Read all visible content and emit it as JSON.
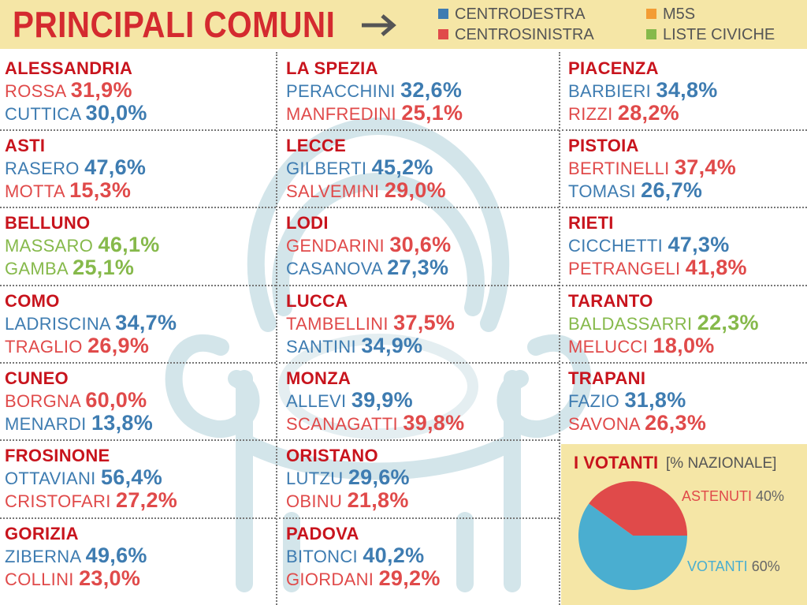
{
  "header": {
    "title": "PRINCIPALI COMUNI",
    "legend": [
      {
        "label": "CENTRODESTRA",
        "color": "#3e7cb1"
      },
      {
        "label": "CENTROSINISTRA",
        "color": "#e04a4a"
      },
      {
        "label": "M5S",
        "color": "#f39c34"
      },
      {
        "label": "LISTE CIVICHE",
        "color": "#86b94b"
      }
    ]
  },
  "cities": [
    {
      "name": "ALESSANDRIA",
      "candidates": [
        {
          "name": "ROSSA",
          "pct": "31,9%",
          "color": "#e04a4a"
        },
        {
          "name": "CUTTICA",
          "pct": "30,0%",
          "color": "#3e7cb1"
        }
      ]
    },
    {
      "name": "ASTI",
      "candidates": [
        {
          "name": "RASERO",
          "pct": "47,6%",
          "color": "#3e7cb1"
        },
        {
          "name": "MOTTA",
          "pct": "15,3%",
          "color": "#e04a4a"
        }
      ]
    },
    {
      "name": "BELLUNO",
      "candidates": [
        {
          "name": "MASSARO",
          "pct": "46,1%",
          "color": "#86b94b"
        },
        {
          "name": "GAMBA",
          "pct": "25,1%",
          "color": "#86b94b"
        }
      ]
    },
    {
      "name": "COMO",
      "candidates": [
        {
          "name": "LADRISCINA",
          "pct": "34,7%",
          "color": "#3e7cb1"
        },
        {
          "name": "TRAGLIO",
          "pct": "26,9%",
          "color": "#e04a4a"
        }
      ]
    },
    {
      "name": "CUNEO",
      "candidates": [
        {
          "name": "BORGNA",
          "pct": "60,0%",
          "color": "#e04a4a"
        },
        {
          "name": "MENARDI",
          "pct": "13,8%",
          "color": "#3e7cb1"
        }
      ]
    },
    {
      "name": "FROSINONE",
      "candidates": [
        {
          "name": "OTTAVIANI",
          "pct": "56,4%",
          "color": "#3e7cb1"
        },
        {
          "name": "CRISTOFARI",
          "pct": "27,2%",
          "color": "#e04a4a"
        }
      ]
    },
    {
      "name": "GORIZIA",
      "candidates": [
        {
          "name": "ZIBERNA",
          "pct": "49,6%",
          "color": "#3e7cb1"
        },
        {
          "name": "COLLINI",
          "pct": "23,0%",
          "color": "#e04a4a"
        }
      ]
    },
    {
      "name": "LA SPEZIA",
      "candidates": [
        {
          "name": "PERACCHINI",
          "pct": "32,6%",
          "color": "#3e7cb1"
        },
        {
          "name": "MANFREDINI",
          "pct": "25,1%",
          "color": "#e04a4a"
        }
      ]
    },
    {
      "name": "LECCE",
      "candidates": [
        {
          "name": "GILBERTI",
          "pct": "45,2%",
          "color": "#3e7cb1"
        },
        {
          "name": "SALVEMINI",
          "pct": "29,0%",
          "color": "#e04a4a"
        }
      ]
    },
    {
      "name": "LODI",
      "candidates": [
        {
          "name": "GENDARINI",
          "pct": "30,6%",
          "color": "#e04a4a"
        },
        {
          "name": "CASANOVA",
          "pct": "27,3%",
          "color": "#3e7cb1"
        }
      ]
    },
    {
      "name": "LUCCA",
      "candidates": [
        {
          "name": "TAMBELLINI",
          "pct": "37,5%",
          "color": "#e04a4a"
        },
        {
          "name": "SANTINI",
          "pct": "34,9%",
          "color": "#3e7cb1"
        }
      ]
    },
    {
      "name": "MONZA",
      "candidates": [
        {
          "name": "ALLEVI",
          "pct": "39,9%",
          "color": "#3e7cb1"
        },
        {
          "name": "SCANAGATTI",
          "pct": "39,8%",
          "color": "#e04a4a"
        }
      ]
    },
    {
      "name": "ORISTANO",
      "candidates": [
        {
          "name": "LUTZU",
          "pct": "29,6%",
          "color": "#3e7cb1"
        },
        {
          "name": "OBINU",
          "pct": "21,8%",
          "color": "#e04a4a"
        }
      ]
    },
    {
      "name": "PADOVA",
      "candidates": [
        {
          "name": "BITONCI",
          "pct": "40,2%",
          "color": "#3e7cb1"
        },
        {
          "name": "GIORDANI",
          "pct": "29,2%",
          "color": "#e04a4a"
        }
      ]
    },
    {
      "name": "PIACENZA",
      "candidates": [
        {
          "name": "BARBIERI",
          "pct": "34,8%",
          "color": "#3e7cb1"
        },
        {
          "name": "RIZZI",
          "pct": "28,2%",
          "color": "#e04a4a"
        }
      ]
    },
    {
      "name": "PISTOIA",
      "candidates": [
        {
          "name": "BERTINELLI",
          "pct": "37,4%",
          "color": "#e04a4a"
        },
        {
          "name": "TOMASI",
          "pct": "26,7%",
          "color": "#3e7cb1"
        }
      ]
    },
    {
      "name": "RIETI",
      "candidates": [
        {
          "name": "CICCHETTI",
          "pct": "47,3%",
          "color": "#3e7cb1"
        },
        {
          "name": "PETRANGELI",
          "pct": "41,8%",
          "color": "#e04a4a"
        }
      ]
    },
    {
      "name": "TARANTO",
      "candidates": [
        {
          "name": "BALDASSARRI",
          "pct": "22,3%",
          "color": "#86b94b"
        },
        {
          "name": "MELUCCI",
          "pct": "18,0%",
          "color": "#e04a4a"
        }
      ]
    },
    {
      "name": "TRAPANI",
      "candidates": [
        {
          "name": "FAZIO",
          "pct": "31,8%",
          "color": "#3e7cb1"
        },
        {
          "name": "SAVONA",
          "pct": "26,3%",
          "color": "#e04a4a"
        }
      ]
    }
  ],
  "voters": {
    "title": "I VOTANTI",
    "subtitle": "[% NAZIONALE]",
    "chart_data": {
      "type": "pie",
      "title": "I VOTANTI [% NAZIONALE]",
      "slices": [
        {
          "label": "ASTENUTI",
          "value": 40,
          "value_text": "40%",
          "color": "#e04a4a"
        },
        {
          "label": "VOTANTI",
          "value": 60,
          "value_text": "60%",
          "color": "#4aaed0"
        }
      ]
    }
  }
}
